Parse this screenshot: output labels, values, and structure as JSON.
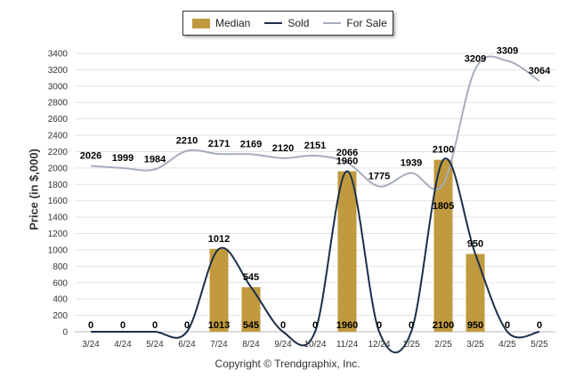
{
  "legend": {
    "median_label": "Median",
    "sold_label": "Sold",
    "for_sale_label": "For Sale"
  },
  "footer": {
    "copyright": "Copyright © Trendgraphix, Inc."
  },
  "colors": {
    "median_bar": "#c19a3f",
    "sold_line": "#1b2f4a",
    "for_sale_line": "#a6adbe",
    "grid": "#e3e3e3"
  },
  "chart_data": {
    "type": "bar",
    "ylabel": "Price (in $,000)",
    "xlabel": "",
    "ylim": [
      0,
      3400
    ],
    "yticks": [
      0,
      200,
      400,
      600,
      800,
      1000,
      1200,
      1400,
      1600,
      1800,
      2000,
      2200,
      2400,
      2600,
      2800,
      3000,
      3200,
      3400
    ],
    "grid": true,
    "legend_position": "top-center",
    "categories": [
      "3/24",
      "4/24",
      "5/24",
      "6/24",
      "7/24",
      "8/24",
      "9/24",
      "10/24",
      "11/24",
      "12/24",
      "1/25",
      "2/25",
      "3/25",
      "4/25",
      "5/25"
    ],
    "series": [
      {
        "name": "Median",
        "kind": "bar",
        "values": [
          0,
          0,
          0,
          0,
          1013,
          545,
          0,
          0,
          1960,
          0,
          0,
          2100,
          950,
          0,
          0
        ]
      },
      {
        "name": "Sold",
        "kind": "line",
        "values": [
          0,
          0,
          0,
          0,
          1012,
          545,
          0,
          0,
          1960,
          0,
          0,
          2100,
          950,
          0,
          0
        ]
      },
      {
        "name": "For Sale",
        "kind": "line",
        "values": [
          2026,
          1999,
          1984,
          2210,
          2171,
          2169,
          2120,
          2151,
          2066,
          1775,
          1939,
          1805,
          3209,
          3309,
          3064
        ]
      }
    ]
  }
}
